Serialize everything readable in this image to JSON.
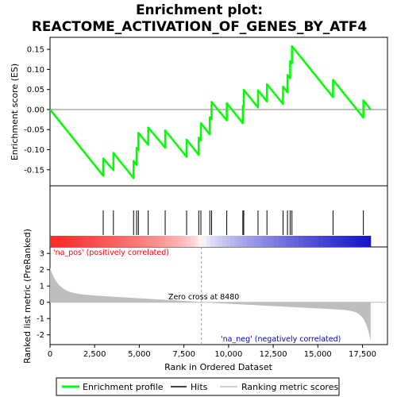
{
  "title_line1": "Enrichment plot:",
  "title_line2": "REACTOME_ACTIVATION_OF_GENES_BY_ATF4",
  "chart_data": {
    "type": "line",
    "es_panel": {
      "ylabel": "Enrichment score (ES)",
      "ylim": [
        -0.19,
        0.18
      ],
      "yticks": [
        -0.15,
        -0.1,
        -0.05,
        0.0,
        0.05,
        0.1,
        0.15
      ],
      "ytick_labels": [
        "-0.15",
        "-0.10",
        "-0.05",
        "0.00",
        "0.05",
        "0.10",
        "0.15"
      ]
    },
    "rank_panel": {
      "ylabel": "Ranked list metric (PreRanked)",
      "xlabel": "Rank in Ordered Dataset",
      "ylim": [
        -2.6,
        3.4
      ],
      "yticks": [
        -2,
        -1,
        0,
        1,
        2,
        3
      ],
      "ytick_labels": [
        "-2",
        "-1",
        "0",
        "1",
        "2",
        "3"
      ],
      "xlim": [
        0,
        18900
      ],
      "xticks": [
        0,
        2500,
        5000,
        7500,
        10000,
        12500,
        15000,
        17500
      ],
      "xtick_labels": [
        "0",
        "2,500",
        "5,000",
        "7,500",
        "10,000",
        "12,500",
        "15,000",
        "17,500"
      ]
    },
    "n_genes": 17960,
    "zero_cross": 8480,
    "hits": [
      2980,
      3550,
      4680,
      4850,
      4950,
      5500,
      6450,
      7650,
      8330,
      8450,
      8950,
      9050,
      9900,
      10800,
      10850,
      11650,
      12150,
      13050,
      13300,
      13450,
      13550,
      15850,
      17550
    ],
    "series": [
      {
        "name": "Enrichment profile",
        "color": "#00ff00",
        "x": [
          0,
          2979,
          2980,
          3549,
          3550,
          4679,
          4680,
          4849,
          4850,
          4949,
          4950,
          5499,
          5500,
          6449,
          6450,
          7649,
          7650,
          8329,
          8330,
          8449,
          8450,
          8949,
          8950,
          9049,
          9050,
          9899,
          9900,
          10799,
          10800,
          10849,
          10850,
          11649,
          11650,
          12149,
          12150,
          13049,
          13050,
          13299,
          13300,
          13449,
          13450,
          13549,
          13550,
          15849,
          15850,
          17549,
          17550,
          17960
        ],
        "y": [
          0.0,
          -0.165,
          -0.122,
          -0.151,
          -0.108,
          -0.171,
          -0.128,
          -0.138,
          -0.095,
          -0.101,
          -0.058,
          -0.088,
          -0.045,
          -0.095,
          -0.052,
          -0.118,
          -0.075,
          -0.113,
          -0.07,
          -0.077,
          -0.034,
          -0.062,
          -0.019,
          -0.024,
          0.019,
          -0.027,
          0.016,
          -0.034,
          0.009,
          0.006,
          0.049,
          0.005,
          0.048,
          0.02,
          0.063,
          0.014,
          0.057,
          0.043,
          0.086,
          0.078,
          0.121,
          0.115,
          0.158,
          0.031,
          0.074,
          -0.02,
          0.023,
          0.0
        ]
      }
    ]
  },
  "annotations": {
    "pos_label": "'na_pos' (positively correlated)",
    "neg_label": "'na_neg' (negatively correlated)",
    "zero_cross_label": "Zero cross at 8480"
  },
  "legend": {
    "items": [
      {
        "label": "Enrichment profile",
        "color": "#00ff00"
      },
      {
        "label": "Hits",
        "color": "#000000"
      },
      {
        "label": "Ranking metric scores",
        "color": "#bebebe"
      }
    ]
  },
  "colors": {
    "pos_annotation": "#ff0000",
    "neg_annotation": "#0000cc",
    "metric_fill": "#bebebe",
    "axis": "#000000"
  }
}
